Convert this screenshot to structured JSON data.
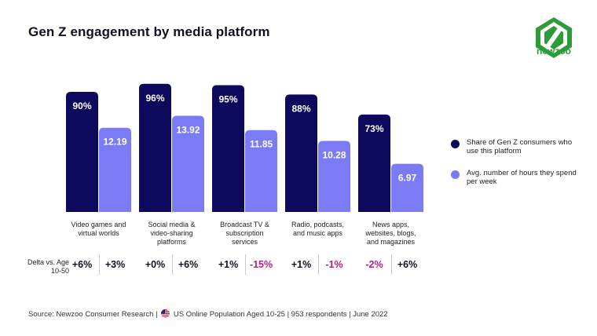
{
  "title": "Gen Z engagement by media platform",
  "logo": {
    "text": "newzoo",
    "icon": "newzoo-logo-icon",
    "color": "#2e9b3a"
  },
  "legend": [
    {
      "label": "Share of Gen Z consumers who use this platform",
      "color": "#0d0a5e"
    },
    {
      "label": "Avg. number of hours they spend per week",
      "color": "#7b7bf5"
    }
  ],
  "chart_data": {
    "type": "bar",
    "categories": [
      "Video games and virtual worlds",
      "Social media & video-sharing platforms",
      "Broadcast TV & subscription services",
      "Radio, podcasts, and music apps",
      "News apps, websites, blogs, and magazines"
    ],
    "series": [
      {
        "name": "Share of Gen Z consumers who use this platform",
        "values": [
          90,
          96,
          95,
          88,
          73
        ],
        "labels": [
          "90%",
          "96%",
          "95%",
          "88%",
          "73%"
        ],
        "color": "#0d0a5e"
      },
      {
        "name": "Avg. number of hours they spend per week",
        "values": [
          12.19,
          13.92,
          11.85,
          10.28,
          6.97
        ],
        "labels": [
          "12.19",
          "13.92",
          "11.85",
          "10.28",
          "6.97"
        ],
        "color": "#7b7bf5"
      }
    ],
    "delta": {
      "label": "Delta vs. Age 10-50",
      "share": [
        "+6%",
        "+0%",
        "+1%",
        "+1%",
        "-2%"
      ],
      "hours": [
        "+3%",
        "+6%",
        "-15%",
        "-1%",
        "+6%"
      ],
      "positive_color": "#111122",
      "negative_color": "#b0227a"
    },
    "legend_position": "right",
    "grid": false
  },
  "source": {
    "prefix": "Source: Newzoo Consumer Research |",
    "flag_icon": "us-flag-icon",
    "suffix": "US Online Population Aged 10-25 | 953 respondents | June 2022"
  }
}
